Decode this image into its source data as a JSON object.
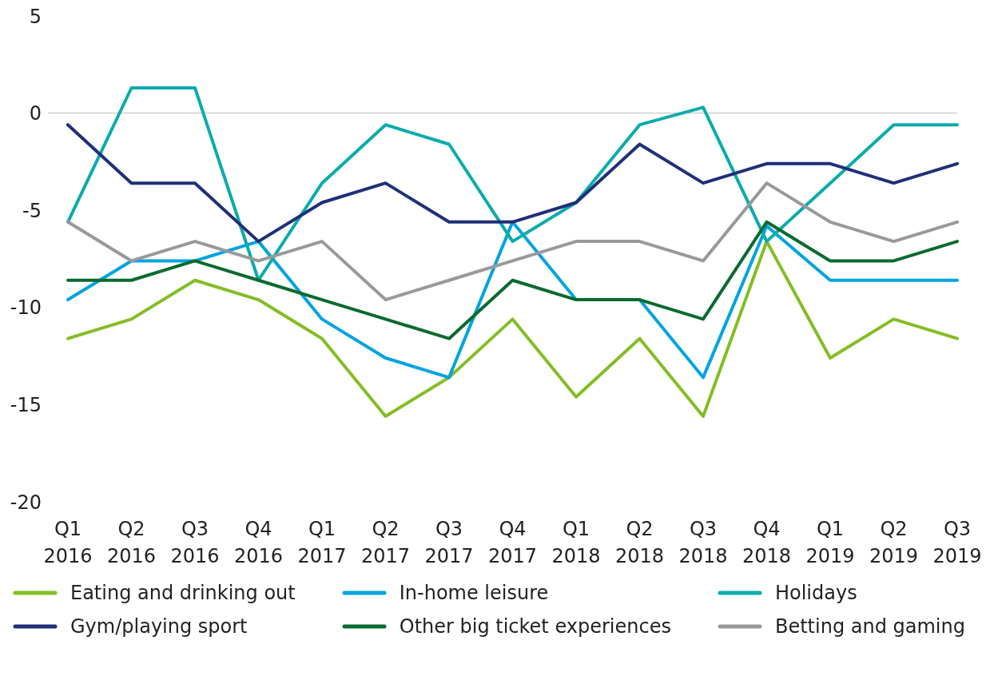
{
  "chart_data": {
    "type": "line",
    "categories": [
      "Q1 2016",
      "Q2 2016",
      "Q3 2016",
      "Q4 2016",
      "Q1 2017",
      "Q2 2017",
      "Q3 2017",
      "Q4 2017",
      "Q1 2018",
      "Q2 2018",
      "Q3 2018",
      "Q4 2018",
      "Q1 2019",
      "Q2 2019",
      "Q3 2019"
    ],
    "series": [
      {
        "name": "Eating and drinking out",
        "color": "#84bd24",
        "values": [
          -11.6,
          -10.6,
          -8.6,
          -9.6,
          -11.6,
          -15.6,
          -13.6,
          -10.6,
          -14.6,
          -11.6,
          -15.6,
          -6.6,
          -12.6,
          -10.6,
          -11.6
        ]
      },
      {
        "name": "In-home leisure",
        "color": "#00a3e0",
        "values": [
          -9.6,
          -7.6,
          -7.6,
          -6.6,
          -10.6,
          -12.6,
          -13.6,
          -5.6,
          -9.6,
          -9.6,
          -13.6,
          -5.8,
          -8.6,
          -8.6,
          -8.6
        ]
      },
      {
        "name": "Holidays",
        "color": "#0babab",
        "values": [
          -5.6,
          1.3,
          1.3,
          -8.6,
          -3.6,
          -0.6,
          -1.6,
          -6.6,
          -4.6,
          -0.6,
          0.3,
          -6.6,
          -3.6,
          -0.6,
          -0.6
        ]
      },
      {
        "name": "Gym/playing sport",
        "color": "#1f2f78",
        "values": [
          -0.6,
          -3.6,
          -3.6,
          -6.6,
          -4.6,
          -3.6,
          -5.6,
          -5.6,
          -4.6,
          -1.6,
          -3.6,
          -2.6,
          -2.6,
          -3.6,
          -2.6
        ]
      },
      {
        "name": "Other big ticket experiences",
        "color": "#0a6a2f",
        "values": [
          -8.6,
          -8.6,
          -7.6,
          -8.6,
          -9.6,
          -10.6,
          -11.6,
          -8.6,
          -9.6,
          -9.6,
          -10.6,
          -5.6,
          -7.6,
          -7.6,
          -6.6
        ]
      },
      {
        "name": "Betting and gaming",
        "color": "#97999b",
        "values": [
          -5.6,
          -7.6,
          -6.6,
          -7.6,
          -6.6,
          -9.6,
          -8.6,
          -7.6,
          -6.6,
          -6.6,
          -7.6,
          -3.6,
          -5.6,
          -6.6,
          -5.6
        ]
      }
    ],
    "ylim": [
      -20,
      5
    ],
    "yticks": [
      -20,
      -15,
      -10,
      -5,
      0,
      5
    ],
    "ref_lines": [
      {
        "axis": "y",
        "value": 0,
        "color": "#d0d0d0"
      }
    ],
    "grid": false,
    "legend": "bottom",
    "marker": "none",
    "line_style": "solid"
  }
}
